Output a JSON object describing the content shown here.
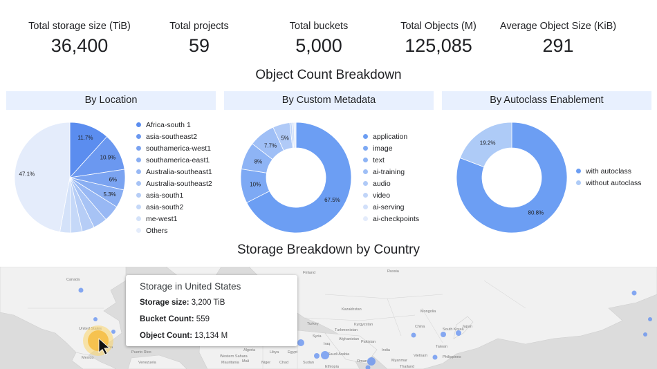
{
  "kpis": [
    {
      "label": "Total storage size (TiB)",
      "value": "36,400"
    },
    {
      "label": "Total projects",
      "value": "59"
    },
    {
      "label": "Total buckets",
      "value": "5,000"
    },
    {
      "label": "Total Objects (M)",
      "value": "125,085"
    },
    {
      "label": "Average Object Size (KiB)",
      "value": "291"
    }
  ],
  "object_count_title": "Object Count Breakdown",
  "storage_title": "Storage Breakdown by Country",
  "chart_data": [
    {
      "type": "pie",
      "title": "By Location",
      "categories": [
        "Africa-south 1",
        "asia-southeast2",
        "southamerica-west1",
        "southamerica-east1",
        "Australia-southeast1",
        "Australia-southeast2",
        "asia-south1",
        "asia-south2",
        "me-west1",
        "Others"
      ],
      "values": [
        11.7,
        10.9,
        6.0,
        5.3,
        4.8,
        4.1,
        3.6,
        3.3,
        3.2,
        47.1
      ],
      "labels": [
        "11.7%",
        "10.9%",
        "6%",
        "5.3%",
        "",
        "",
        "",
        "",
        "",
        "47.1%"
      ],
      "colors": [
        "#5b8def",
        "#6b98f0",
        "#7aa3f1",
        "#89aef2",
        "#98b8f4",
        "#a7c3f5",
        "#b6cdf6",
        "#c5d8f8",
        "#d4e2f9",
        "#e4ecfb"
      ],
      "legend_position": "right"
    },
    {
      "type": "donut",
      "title": "By Custom Metadata",
      "categories": [
        "application",
        "image",
        "text",
        "ai-training",
        "audio",
        "video",
        "ai-serving",
        "ai-checkpoints"
      ],
      "values": [
        67.5,
        10,
        8,
        7.7,
        5,
        0.6,
        0.6,
        0.6
      ],
      "labels": [
        "67.5%",
        "10%",
        "8%",
        "7.7%",
        "5%",
        "",
        "",
        ""
      ],
      "colors": [
        "#6c9ef3",
        "#7da9f4",
        "#8eb4f5",
        "#9fbff6",
        "#b0caf7",
        "#c1d5f8",
        "#d2e0fa",
        "#e3ebfb"
      ],
      "legend_position": "right"
    },
    {
      "type": "donut",
      "title": "By Autoclass Enablement",
      "categories": [
        "with autoclass",
        "without autoclass"
      ],
      "values": [
        80.8,
        19.2
      ],
      "labels": [
        "80.8%",
        "19.2%"
      ],
      "colors": [
        "#6c9ef3",
        "#aecbf7"
      ],
      "legend_position": "right"
    }
  ],
  "map": {
    "country_labels": [
      "Canada",
      "United States",
      "Mexico",
      "Russia",
      "Finland",
      "Kazakhstan",
      "Kyrgyzstan",
      "Turkmenistan",
      "Afghanistan",
      "Syria",
      "Iraq",
      "Saudi Arabia",
      "Oman",
      "Egypt",
      "Libya",
      "Algeria",
      "Mali",
      "Niger",
      "Chad",
      "Sudan",
      "Ethiopia",
      "Mauritania",
      "Western Sahara",
      "Cuba",
      "Puerto Rico",
      "Venezuela",
      "India",
      "China",
      "Myanmar",
      "Thailand",
      "Mongolia",
      "South Korea",
      "Japan",
      "Taiwan",
      "Philippines",
      "Vietnam",
      "Pakistan",
      "Turkey"
    ],
    "tooltip": {
      "title": "Storage in United States",
      "rows": [
        {
          "label": "Storage size:",
          "value": "3,200 TiB"
        },
        {
          "label": "Bucket Count:",
          "value": "559"
        },
        {
          "label": "Object Count:",
          "value": "13,134 M"
        }
      ]
    }
  }
}
